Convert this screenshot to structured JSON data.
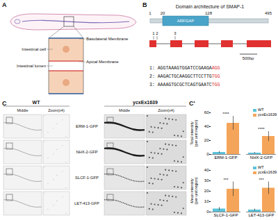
{
  "panels": {
    "A": {
      "label": "A",
      "intestinal_cell": "Intestinal cell",
      "intestinal_lumen": "Intestinal lumen",
      "basolateral_membrane": "Basolateral Membrane",
      "apical_membrane": "Apical Membrane"
    },
    "B": {
      "label": "B",
      "title": "Domain architecture of SMAP-1",
      "protein": {
        "start": 1,
        "domain_start": 20,
        "domain_end": 128,
        "end": 495,
        "domain_name": "ARFGAP"
      },
      "sgrna_sites": [
        "1",
        "2",
        "3"
      ],
      "scale_bar": "500bp",
      "sgrnas": [
        {
          "prefix": "1: ",
          "seq": "AGGTAAAGTGGATCCGAAGA",
          "pam": "AGG"
        },
        {
          "prefix": "2: ",
          "seq": "AAGACTGCAAGGCTTCCTTG",
          "pam": "TGG"
        },
        {
          "prefix": "3: ",
          "seq": "AAAAGTGCGCTCAGTGAATC",
          "pam": "TGG"
        }
      ]
    },
    "C": {
      "label": "C",
      "columns": [
        "WT",
        "ycxEx1639"
      ],
      "subcolumns": [
        "Middle",
        "Zoom(x4)"
      ],
      "rows": [
        "ERM-1-GFP",
        "NHX-2-GFP",
        "SLCF-1-GFP",
        "LET-413-GFP"
      ]
    },
    "C'": {
      "label": "C'"
    }
  },
  "chart_data": [
    {
      "type": "bar",
      "ylabel": "Total intensity (per unit region)",
      "categories": [
        "ERM-1-GFP",
        "NHX-2-GFP"
      ],
      "series": [
        {
          "name": "WT",
          "color": "#5cc3d9",
          "values": [
            3,
            2
          ],
          "error": [
            1.5,
            1
          ]
        },
        {
          "name": "ycxEx1639",
          "color": "#f5a55a",
          "values": [
            45,
            26
          ],
          "error": [
            10,
            7
          ]
        }
      ],
      "annotations": [
        "****",
        "****"
      ],
      "ylim": [
        0,
        60
      ],
      "yticks": [
        0,
        20,
        40,
        60
      ],
      "legend": "top-right"
    },
    {
      "type": "bar",
      "ylabel": "Mean intensity (per unit region)",
      "categories": [
        "SLCF-1-GFP",
        "LET-413-GFP"
      ],
      "series": [
        {
          "name": "WT",
          "color": "#5cc3d9",
          "values": [
            3,
            2
          ],
          "error": [
            1.5,
            1
          ]
        },
        {
          "name": "ycxEx1639",
          "color": "#f5a55a",
          "values": [
            22,
            23
          ],
          "error": [
            7,
            6
          ]
        }
      ],
      "annotations": [
        "***",
        "***"
      ],
      "ylim": [
        0,
        40
      ],
      "yticks": [
        0,
        10,
        20,
        30,
        40
      ],
      "legend": "top-right"
    }
  ]
}
